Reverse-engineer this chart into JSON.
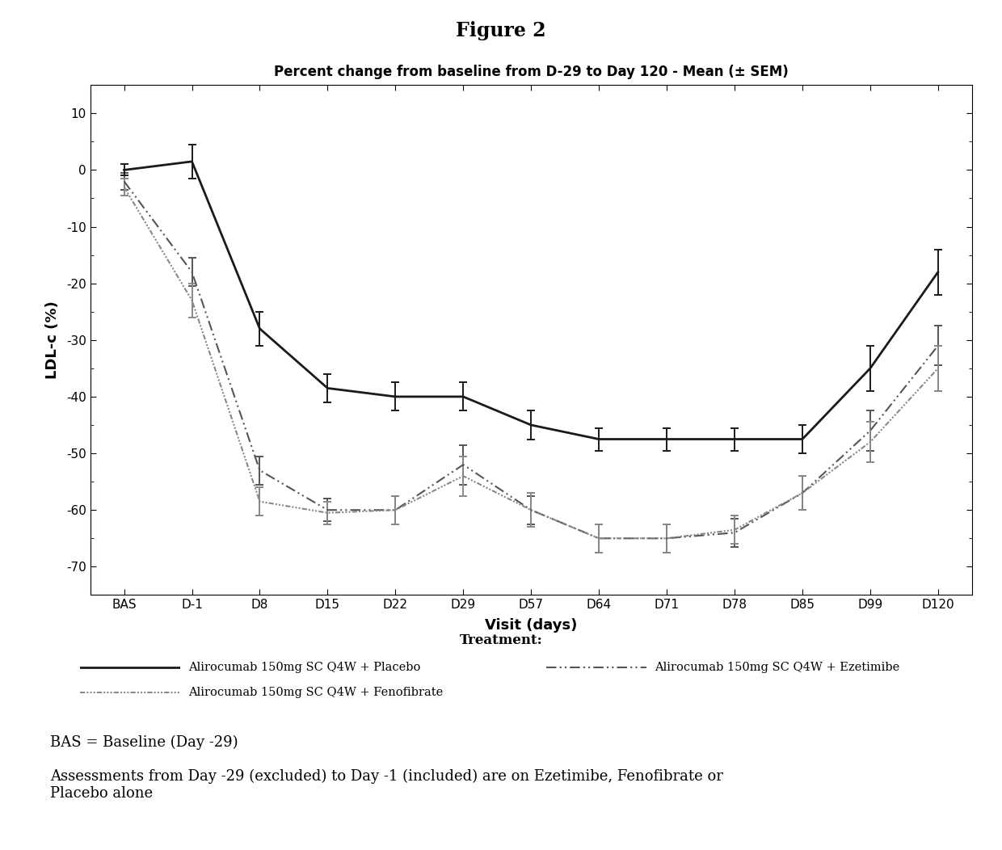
{
  "title_top": "Figure 2",
  "chart_title": "Percent change from baseline from D-29 to Day 120 - Mean (± SEM)",
  "xlabel": "Visit (days)",
  "ylabel": "LDL-c (%)",
  "legend_title": "Treatment:",
  "x_labels": [
    "BAS",
    "D-1",
    "D8",
    "D15",
    "D22",
    "D29",
    "D57",
    "D64",
    "D71",
    "D78",
    "D85",
    "D99",
    "D120"
  ],
  "x_values": [
    0,
    1,
    2,
    3,
    4,
    5,
    6,
    7,
    8,
    9,
    10,
    11,
    12
  ],
  "ylim": [
    -75,
    15
  ],
  "yticks": [
    10,
    0,
    -10,
    -20,
    -30,
    -40,
    -50,
    -60,
    -70
  ],
  "placebo_y": [
    0.0,
    1.5,
    -28.0,
    -38.5,
    -40.0,
    -40.0,
    -45.0,
    -47.5,
    -47.5,
    -47.5,
    -47.5,
    -35.0,
    -18.0
  ],
  "placebo_err": [
    1.0,
    3.0,
    3.0,
    2.5,
    2.5,
    2.5,
    2.5,
    2.0,
    2.0,
    2.0,
    2.5,
    4.0,
    4.0
  ],
  "ezetimibe_y": [
    -2.0,
    -18.0,
    -53.0,
    -60.0,
    -60.0,
    -52.0,
    -60.0,
    -65.0,
    -65.0,
    -64.0,
    -57.0,
    -46.0,
    -31.0
  ],
  "ezetimibe_err": [
    1.5,
    2.5,
    2.5,
    2.0,
    2.5,
    3.5,
    2.5,
    2.5,
    2.5,
    2.5,
    3.0,
    3.5,
    3.5
  ],
  "fenofibrate_y": [
    -3.0,
    -23.0,
    -58.5,
    -60.5,
    -60.0,
    -54.0,
    -60.0,
    -65.0,
    -65.0,
    -63.5,
    -57.0,
    -48.0,
    -35.0
  ],
  "fenofibrate_err": [
    1.5,
    3.0,
    2.5,
    2.0,
    2.5,
    3.5,
    3.0,
    2.5,
    2.5,
    2.5,
    3.0,
    3.5,
    4.0
  ],
  "placebo_color": "#1a1a1a",
  "ezetimibe_color": "#555555",
  "fenofibrate_color": "#888888",
  "footnote1": "BAS = Baseline (Day -29)",
  "footnote2": "Assessments from Day -29 (excluded) to Day -1 (included) are on Ezetimibe, Fenofibrate or\nPlacebo alone",
  "background_color": "#ffffff",
  "legend_row1_left_label": "Alirocumab 150mg SC Q4W + Placebo",
  "legend_row1_right_label": "Alirocumab 150mg SC Q4W + Ezetimibe",
  "legend_row2_left_label": "Alirocumab 150mg SC Q4W + Fenofibrate"
}
